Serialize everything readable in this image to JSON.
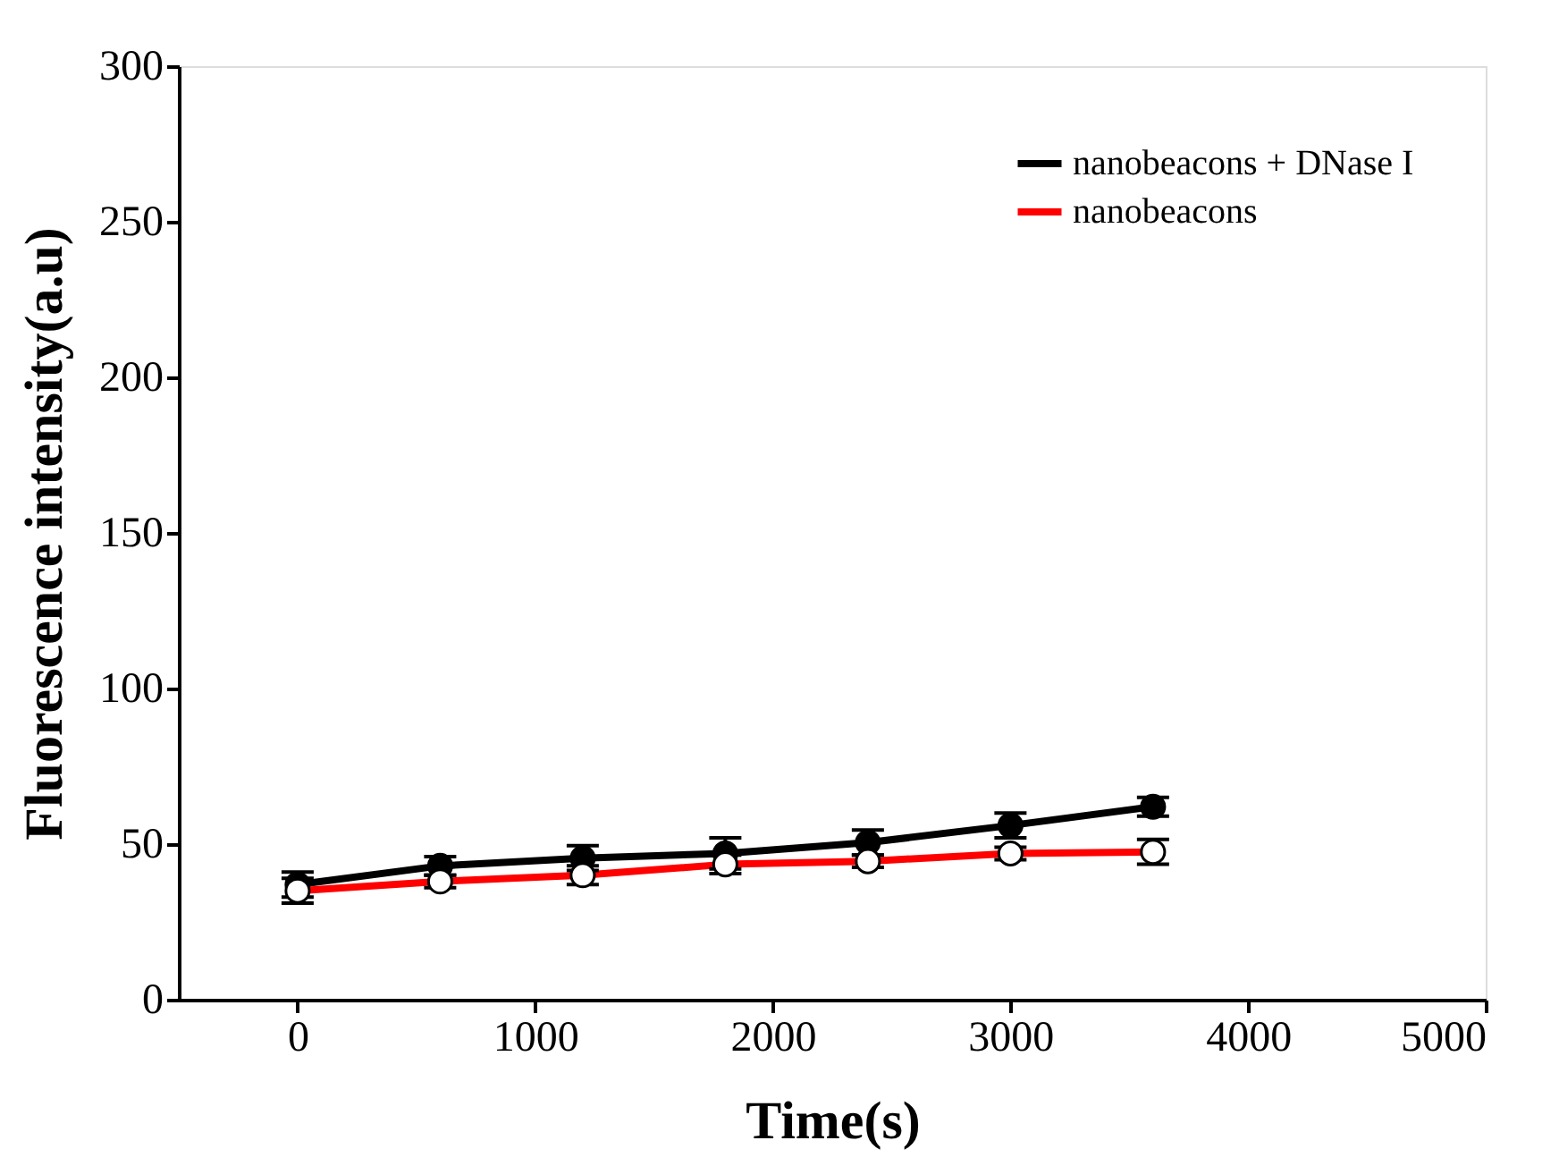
{
  "chart_data": {
    "type": "line",
    "xlabel": "Time(s)",
    "ylabel": "Fluorescence intensity(a.u)",
    "x": [
      0,
      600,
      1200,
      1800,
      2400,
      3000,
      3600
    ],
    "series": [
      {
        "name": "nanobeacons + DNase I",
        "color": "#000000",
        "marker": "circle",
        "values": [
          37,
          43,
          45.5,
          47,
          50.5,
          56,
          62
        ],
        "errors": [
          4,
          3,
          4,
          5,
          4,
          4,
          3
        ]
      },
      {
        "name": "nanobeacons",
        "color": "#ff0000",
        "marker": "circle",
        "values": [
          35,
          38,
          40,
          43.5,
          44.5,
          47,
          47.5
        ],
        "errors": [
          4,
          2,
          3,
          3,
          2,
          2,
          4
        ]
      }
    ],
    "xlim": [
      -500,
      5000
    ],
    "xticks": [
      0,
      1000,
      2000,
      3000,
      4000,
      5000
    ],
    "ylim": [
      0,
      300
    ],
    "yticks": [
      0,
      50,
      100,
      150,
      200,
      250,
      300
    ],
    "grid": false,
    "legend": "top right"
  }
}
